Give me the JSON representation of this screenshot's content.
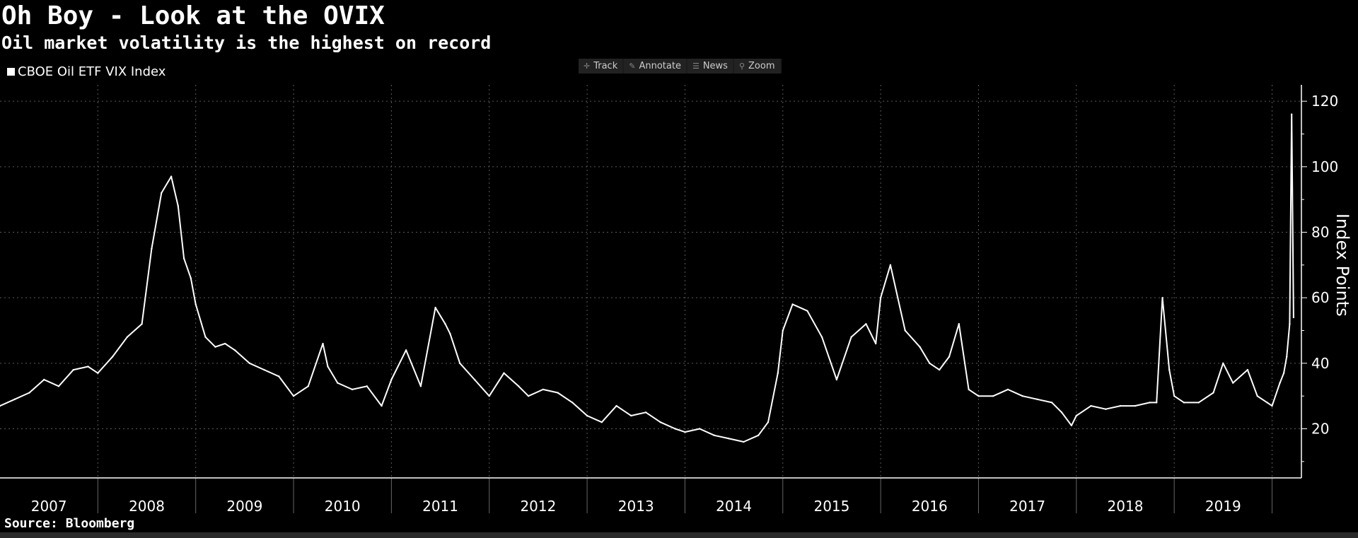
{
  "header": {
    "title": "Oh Boy - Look at the OVIX",
    "subtitle": "Oil market volatility is the highest on record"
  },
  "toolbar": {
    "track": "Track",
    "annotate": "Annotate",
    "news": "News",
    "zoom": "Zoom"
  },
  "footer": {
    "source": "Source: Bloomberg"
  },
  "colors": {
    "background": "#000000",
    "line": "#ffffff",
    "grid": "#5a5a5a"
  },
  "chart_data": {
    "type": "line",
    "title": "Oh Boy - Look at the OVIX",
    "subtitle": "Oil market volatility is the highest on record",
    "ylabel": "Index Points",
    "ylim": [
      5,
      125
    ],
    "xlim": [
      2007.0,
      2020.3
    ],
    "yticks": [
      20,
      40,
      60,
      80,
      100,
      120
    ],
    "year_labels": [
      "2007",
      "2008",
      "2009",
      "2010",
      "2011",
      "2012",
      "2013",
      "2014",
      "2015",
      "2016",
      "2017",
      "2018",
      "2019"
    ],
    "grid": true,
    "legend_position": "top-left",
    "series": [
      {
        "name": "CBOE Oil ETF VIX Index",
        "x": [
          2007.0,
          2007.15,
          2007.3,
          2007.45,
          2007.6,
          2007.75,
          2007.9,
          2008.0,
          2008.15,
          2008.3,
          2008.45,
          2008.55,
          2008.65,
          2008.75,
          2008.82,
          2008.88,
          2008.95,
          2009.0,
          2009.1,
          2009.2,
          2009.3,
          2009.4,
          2009.55,
          2009.7,
          2009.85,
          2010.0,
          2010.15,
          2010.3,
          2010.35,
          2010.45,
          2010.6,
          2010.75,
          2010.9,
          2011.0,
          2011.15,
          2011.3,
          2011.45,
          2011.55,
          2011.6,
          2011.7,
          2011.85,
          2012.0,
          2012.15,
          2012.3,
          2012.4,
          2012.55,
          2012.7,
          2012.85,
          2013.0,
          2013.15,
          2013.3,
          2013.45,
          2013.6,
          2013.75,
          2013.9,
          2014.0,
          2014.15,
          2014.3,
          2014.45,
          2014.6,
          2014.75,
          2014.85,
          2014.95,
          2015.0,
          2015.1,
          2015.25,
          2015.4,
          2015.55,
          2015.7,
          2015.85,
          2015.95,
          2016.0,
          2016.1,
          2016.25,
          2016.4,
          2016.5,
          2016.6,
          2016.7,
          2016.8,
          2016.9,
          2017.0,
          2017.15,
          2017.3,
          2017.45,
          2017.6,
          2017.75,
          2017.85,
          2017.95,
          2018.0,
          2018.15,
          2018.3,
          2018.45,
          2018.6,
          2018.75,
          2018.82,
          2018.88,
          2018.95,
          2019.0,
          2019.1,
          2019.25,
          2019.4,
          2019.5,
          2019.6,
          2019.75,
          2019.85,
          2019.95,
          2020.0,
          2020.08,
          2020.12,
          2020.15,
          2020.18,
          2020.2,
          2020.22
        ],
        "values": [
          27,
          29,
          31,
          35,
          33,
          38,
          39,
          37,
          42,
          48,
          52,
          75,
          92,
          97,
          88,
          72,
          66,
          58,
          48,
          45,
          46,
          44,
          40,
          38,
          36,
          30,
          33,
          46,
          39,
          34,
          32,
          33,
          27,
          35,
          44,
          33,
          57,
          52,
          49,
          40,
          35,
          30,
          37,
          33,
          30,
          32,
          31,
          28,
          24,
          22,
          27,
          24,
          25,
          22,
          20,
          19,
          20,
          18,
          17,
          16,
          18,
          22,
          37,
          50,
          58,
          56,
          48,
          35,
          48,
          52,
          46,
          60,
          70,
          50,
          45,
          40,
          38,
          42,
          52,
          32,
          30,
          30,
          32,
          30,
          29,
          28,
          25,
          21,
          24,
          27,
          26,
          27,
          27,
          28,
          28,
          60,
          38,
          30,
          28,
          28,
          31,
          40,
          34,
          38,
          30,
          28,
          27,
          34,
          37,
          42,
          52,
          116,
          54
        ]
      }
    ]
  }
}
